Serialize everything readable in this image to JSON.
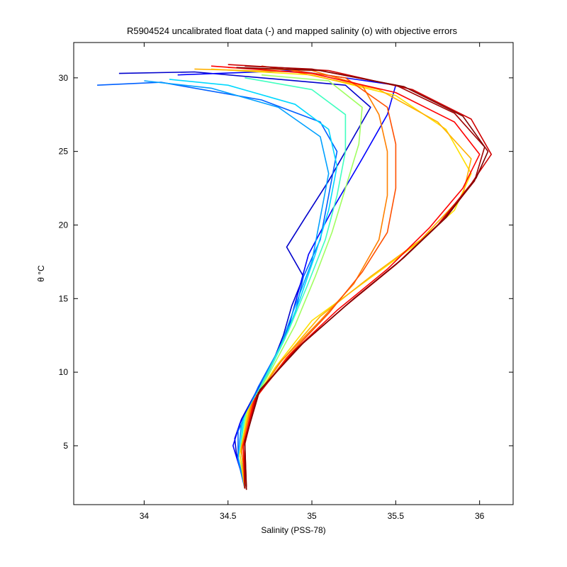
{
  "chart_data": {
    "type": "line",
    "title": "R5904524 uncalibrated float data (-) and mapped salinity (o) with objective errors",
    "xlabel": "Salinity (PSS-78)",
    "ylabel": "θ °C",
    "xlim": [
      33.58,
      36.2
    ],
    "ylim": [
      1.0,
      32.4
    ],
    "xticks": [
      34,
      34.5,
      35,
      35.5,
      36
    ],
    "xtick_labels": [
      "34",
      "34.5",
      "35",
      "35.5",
      "36"
    ],
    "yticks": [
      5,
      10,
      15,
      20,
      25,
      30
    ],
    "ytick_labels": [
      "5",
      "10",
      "15",
      "20",
      "25",
      "30"
    ],
    "grid": false,
    "colormap": [
      "#00008f",
      "#0000ff",
      "#0080ff",
      "#00ffff",
      "#80ff80",
      "#ffff00",
      "#ff8000",
      "#ff0000",
      "#800000"
    ],
    "series": [
      {
        "color": "#0000cc",
        "points": [
          [
            34.6,
            2.1
          ],
          [
            34.58,
            3.2
          ],
          [
            34.55,
            4.5
          ],
          [
            34.54,
            5.5
          ],
          [
            34.58,
            6.8
          ],
          [
            34.66,
            8.5
          ],
          [
            34.75,
            10.2
          ],
          [
            34.83,
            12.5
          ],
          [
            34.88,
            14.5
          ],
          [
            34.95,
            16.5
          ],
          [
            34.85,
            18.5
          ],
          [
            34.96,
            20.5
          ],
          [
            35.1,
            23
          ],
          [
            35.25,
            26
          ],
          [
            35.35,
            28
          ],
          [
            35.2,
            29.5
          ],
          [
            34.3,
            30.4
          ],
          [
            33.85,
            30.3
          ]
        ]
      },
      {
        "color": "#0000ff",
        "points": [
          [
            34.61,
            2.2
          ],
          [
            34.57,
            3.5
          ],
          [
            34.53,
            5.0
          ],
          [
            34.57,
            6.5
          ],
          [
            34.65,
            8.2
          ],
          [
            34.76,
            10.5
          ],
          [
            34.86,
            13.0
          ],
          [
            34.92,
            15.5
          ],
          [
            34.98,
            18.0
          ],
          [
            35.12,
            21.0
          ],
          [
            35.3,
            24.5
          ],
          [
            35.45,
            27.5
          ],
          [
            35.5,
            29.5
          ],
          [
            34.9,
            30.5
          ],
          [
            34.2,
            30.2
          ]
        ]
      },
      {
        "color": "#0060ff",
        "points": [
          [
            34.6,
            2.1
          ],
          [
            34.56,
            4.0
          ],
          [
            34.56,
            6.0
          ],
          [
            34.68,
            9.0
          ],
          [
            34.8,
            11.5
          ],
          [
            34.9,
            14.0
          ],
          [
            34.95,
            16.5
          ],
          [
            35.05,
            19.0
          ],
          [
            35.1,
            22.0
          ],
          [
            35.15,
            25.0
          ],
          [
            35.05,
            27.0
          ],
          [
            34.7,
            28.5
          ],
          [
            34.1,
            29.7
          ],
          [
            33.72,
            29.5
          ]
        ]
      },
      {
        "color": "#00a0ff",
        "points": [
          [
            34.6,
            2.3
          ],
          [
            34.56,
            4.2
          ],
          [
            34.58,
            6.5
          ],
          [
            34.7,
            9.2
          ],
          [
            34.82,
            12.0
          ],
          [
            34.9,
            14.5
          ],
          [
            35.0,
            17.5
          ],
          [
            35.05,
            20.5
          ],
          [
            35.1,
            23.5
          ],
          [
            35.05,
            26.0
          ],
          [
            34.8,
            28.0
          ],
          [
            34.4,
            29.3
          ],
          [
            34.0,
            29.8
          ]
        ]
      },
      {
        "color": "#00d8ff",
        "points": [
          [
            34.61,
            2.2
          ],
          [
            34.57,
            4.3
          ],
          [
            34.59,
            6.8
          ],
          [
            34.72,
            9.5
          ],
          [
            34.84,
            12.3
          ],
          [
            34.93,
            15.0
          ],
          [
            35.02,
            18.0
          ],
          [
            35.1,
            21.0
          ],
          [
            35.15,
            24.0
          ],
          [
            35.1,
            26.5
          ],
          [
            34.9,
            28.2
          ],
          [
            34.5,
            29.5
          ],
          [
            34.15,
            29.9
          ]
        ]
      },
      {
        "color": "#40ffc0",
        "points": [
          [
            34.6,
            2.1
          ],
          [
            34.57,
            4.5
          ],
          [
            34.6,
            7.0
          ],
          [
            34.73,
            9.8
          ],
          [
            34.86,
            12.8
          ],
          [
            34.97,
            15.8
          ],
          [
            35.08,
            19.0
          ],
          [
            35.15,
            22.0
          ],
          [
            35.2,
            25.0
          ],
          [
            35.2,
            27.5
          ],
          [
            35.0,
            29.2
          ],
          [
            34.6,
            30.0
          ]
        ]
      },
      {
        "color": "#a0ff60",
        "points": [
          [
            34.61,
            2.2
          ],
          [
            34.58,
            4.6
          ],
          [
            34.61,
            7.2
          ],
          [
            34.75,
            10.0
          ],
          [
            34.9,
            13.2
          ],
          [
            35.02,
            16.5
          ],
          [
            35.12,
            19.5
          ],
          [
            35.2,
            22.5
          ],
          [
            35.28,
            25.5
          ],
          [
            35.3,
            28.0
          ],
          [
            35.1,
            29.8
          ],
          [
            34.7,
            30.2
          ]
        ]
      },
      {
        "color": "#ffe000",
        "points": [
          [
            34.6,
            2.1
          ],
          [
            34.57,
            4.4
          ],
          [
            34.62,
            7.4
          ],
          [
            34.78,
            10.3
          ],
          [
            35.0,
            13.5
          ],
          [
            35.3,
            16.0
          ],
          [
            35.6,
            18.5
          ],
          [
            35.85,
            21.0
          ],
          [
            35.95,
            23.5
          ],
          [
            35.8,
            26.5
          ],
          [
            35.5,
            28.8
          ],
          [
            35.0,
            30.2
          ],
          [
            34.4,
            30.6
          ]
        ]
      },
      {
        "color": "#ffb000",
        "points": [
          [
            34.61,
            2.2
          ],
          [
            34.58,
            4.6
          ],
          [
            34.63,
            7.6
          ],
          [
            34.8,
            10.5
          ],
          [
            35.05,
            13.8
          ],
          [
            35.35,
            16.5
          ],
          [
            35.65,
            19.0
          ],
          [
            35.9,
            22.0
          ],
          [
            35.95,
            24.5
          ],
          [
            35.75,
            27.0
          ],
          [
            35.4,
            29.2
          ],
          [
            34.9,
            30.4
          ],
          [
            34.3,
            30.6
          ]
        ]
      },
      {
        "color": "#ff8000",
        "points": [
          [
            34.6,
            2.1
          ],
          [
            34.58,
            4.8
          ],
          [
            34.64,
            7.8
          ],
          [
            34.82,
            10.8
          ],
          [
            35.05,
            13.5
          ],
          [
            35.25,
            16.0
          ],
          [
            35.4,
            19.0
          ],
          [
            35.45,
            22.0
          ],
          [
            35.45,
            25.0
          ],
          [
            35.4,
            27.5
          ],
          [
            35.3,
            29.5
          ],
          [
            35.0,
            30.5
          ],
          [
            34.5,
            30.7
          ]
        ]
      },
      {
        "color": "#ff5000",
        "points": [
          [
            34.61,
            2.2
          ],
          [
            34.59,
            4.9
          ],
          [
            34.65,
            8.0
          ],
          [
            34.85,
            11.0
          ],
          [
            35.1,
            14.0
          ],
          [
            35.3,
            16.8
          ],
          [
            35.45,
            19.5
          ],
          [
            35.5,
            22.5
          ],
          [
            35.5,
            25.5
          ],
          [
            35.45,
            28.0
          ],
          [
            35.2,
            30.0
          ],
          [
            34.7,
            30.8
          ]
        ]
      },
      {
        "color": "#ff0000",
        "points": [
          [
            34.6,
            2.1
          ],
          [
            34.59,
            5.0
          ],
          [
            34.66,
            8.2
          ],
          [
            34.87,
            11.2
          ],
          [
            35.15,
            14.2
          ],
          [
            35.45,
            17.0
          ],
          [
            35.7,
            19.8
          ],
          [
            35.9,
            22.5
          ],
          [
            36.0,
            24.8
          ],
          [
            35.85,
            27.0
          ],
          [
            35.5,
            29.0
          ],
          [
            35.0,
            30.3
          ],
          [
            34.4,
            30.8
          ]
        ]
      },
      {
        "color": "#d00000",
        "points": [
          [
            34.61,
            2.2
          ],
          [
            34.6,
            5.1
          ],
          [
            34.67,
            8.4
          ],
          [
            34.9,
            11.5
          ],
          [
            35.2,
            14.5
          ],
          [
            35.5,
            17.3
          ],
          [
            35.75,
            20.0
          ],
          [
            35.95,
            22.8
          ],
          [
            36.07,
            24.8
          ],
          [
            35.95,
            27.2
          ],
          [
            35.6,
            29.2
          ],
          [
            35.1,
            30.5
          ],
          [
            34.5,
            30.9
          ]
        ]
      },
      {
        "color": "#a00000",
        "points": [
          [
            34.6,
            2.1
          ],
          [
            34.6,
            5.2
          ],
          [
            34.68,
            8.6
          ],
          [
            34.92,
            11.7
          ],
          [
            35.22,
            14.7
          ],
          [
            35.52,
            17.5
          ],
          [
            35.78,
            20.3
          ],
          [
            35.97,
            23.0
          ],
          [
            36.03,
            25.3
          ],
          [
            35.85,
            27.6
          ],
          [
            35.5,
            29.5
          ],
          [
            35.0,
            30.6
          ],
          [
            34.6,
            30.8
          ]
        ]
      },
      {
        "color": "#800000",
        "points": [
          [
            34.61,
            2.0
          ],
          [
            34.6,
            5.3
          ],
          [
            34.69,
            8.8
          ],
          [
            34.95,
            12.0
          ],
          [
            35.25,
            15.0
          ],
          [
            35.55,
            17.8
          ],
          [
            35.8,
            20.5
          ],
          [
            35.98,
            23.2
          ],
          [
            36.05,
            25.0
          ],
          [
            35.9,
            27.4
          ],
          [
            35.55,
            29.4
          ],
          [
            35.05,
            30.5
          ],
          [
            34.55,
            30.7
          ]
        ]
      }
    ]
  }
}
